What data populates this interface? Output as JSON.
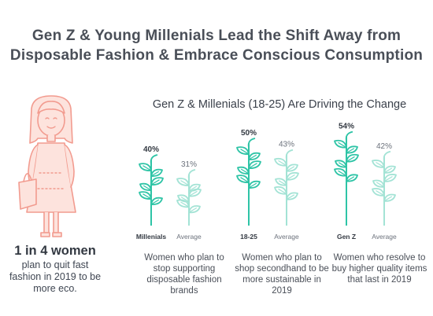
{
  "header": {
    "title_line1": "Gen Z & Young Millenials Lead the Shift Away from",
    "title_line2": "Disposable Fashion & Embrace Conscious Consumption",
    "subtitle": "Gen Z & Millenials (18-25) Are Driving the Change"
  },
  "highlight": {
    "stat": "1 in 4 women",
    "description": "plan to quit fast fashion in 2019 to be more eco."
  },
  "colors": {
    "accent_teal": "#2ec4a6",
    "light_teal": "#a3e3d5",
    "coral": "#f29b8f"
  },
  "chart_data": {
    "type": "bar",
    "categories": [
      "Women who plan to stop supporting disposable fashion brands",
      "Women who plan to shop secondhand to be more sustainable in 2019",
      "Women who resolve to buy higher quality items that last in 2019"
    ],
    "groups": [
      {
        "description": "Women who plan to stop supporting disposable fashion brands",
        "primary": {
          "label": "Millenials",
          "value": 40,
          "value_label": "40%"
        },
        "average": {
          "label": "Average",
          "value": 31,
          "value_label": "31%"
        }
      },
      {
        "description": "Women who plan to shop secondhand to be more sustainable in 2019",
        "primary": {
          "label": "18-25",
          "value": 50,
          "value_label": "50%"
        },
        "average": {
          "label": "Average",
          "value": 43,
          "value_label": "43%"
        }
      },
      {
        "description": "Women who resolve to buy higher quality items that last in 2019",
        "primary": {
          "label": "Gen Z",
          "value": 54,
          "value_label": "54%"
        },
        "average": {
          "label": "Average",
          "value": 42,
          "value_label": "42%"
        }
      }
    ]
  }
}
